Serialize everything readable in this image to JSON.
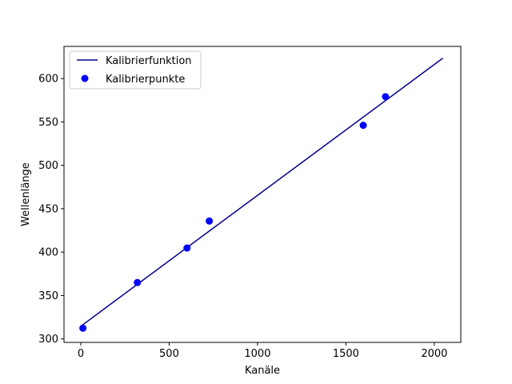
{
  "chart_data": {
    "type": "scatter",
    "title": "",
    "xlabel": "Kanäle",
    "ylabel": "Wellenlänge",
    "xlim": [
      -95,
      2150
    ],
    "ylim": [
      296,
      637
    ],
    "xticks": [
      0,
      500,
      1000,
      1500,
      2000
    ],
    "yticks": [
      300,
      350,
      400,
      450,
      500,
      550,
      600
    ],
    "grid": false,
    "legend_position": "top-left",
    "series": [
      {
        "name": "Kalibrierfunktion",
        "kind": "line",
        "color": "#00008b",
        "x": [
          5,
          2048
        ],
        "y": [
          315.4,
          623.4
        ]
      },
      {
        "name": "Kalibrierpunkte",
        "kind": "scatter",
        "color": "#0000ff",
        "x": [
          12,
          320,
          601,
          727,
          1598,
          1724
        ],
        "y": [
          312.4,
          365.0,
          404.7,
          435.8,
          546.1,
          579.1
        ]
      }
    ]
  }
}
